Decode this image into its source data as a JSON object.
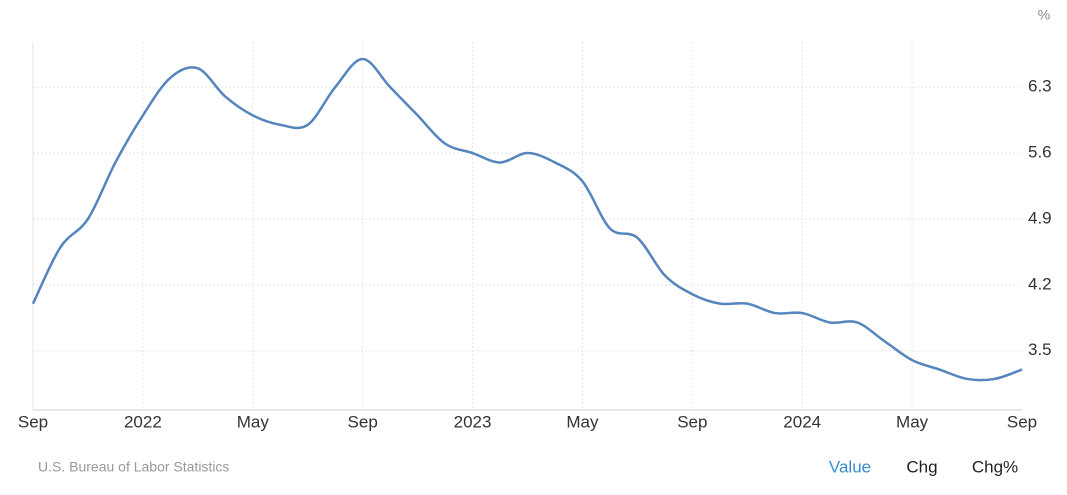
{
  "chart_data": {
    "type": "line",
    "y_unit": "%",
    "categories": [
      "Sep",
      null,
      null,
      null,
      "2022",
      null,
      null,
      null,
      "May",
      null,
      null,
      null,
      "Sep",
      null,
      null,
      null,
      "2023",
      null,
      null,
      null,
      "May",
      null,
      null,
      null,
      "Sep",
      null,
      null,
      null,
      "2024",
      null,
      null,
      null,
      "May",
      null,
      null,
      null,
      "Sep"
    ],
    "series": [
      {
        "name": "Value",
        "color": "#5585bd",
        "values": [
          4.0,
          4.6,
          4.9,
          5.5,
          6.0,
          6.4,
          6.5,
          6.2,
          6.0,
          5.9,
          5.9,
          6.3,
          6.6,
          6.3,
          6.0,
          5.7,
          5.6,
          5.5,
          5.6,
          5.5,
          5.3,
          4.8,
          4.7,
          4.3,
          4.1,
          4.0,
          4.0,
          3.9,
          3.9,
          3.8,
          3.8,
          3.6,
          3.4,
          3.3,
          3.2,
          3.2,
          3.3
        ]
      }
    ],
    "ylim": [
      2.87,
      6.78
    ],
    "yticks": [
      3.5,
      4.2,
      4.9,
      5.6,
      6.3
    ],
    "grid": true
  },
  "source": "U.S. Bureau of Labor Statistics",
  "tabs": [
    "Value",
    "Chg",
    "Chg%"
  ],
  "active_tab": 0
}
